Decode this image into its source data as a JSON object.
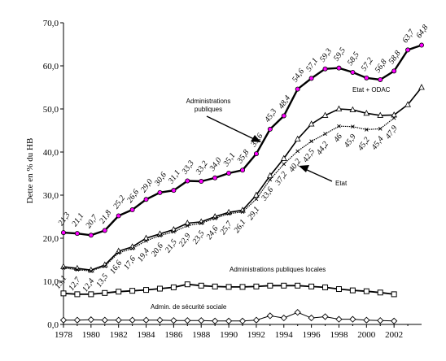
{
  "chart_data": {
    "type": "line",
    "title": "",
    "xlabel": "",
    "ylabel": "Dette en % du HB",
    "xlim": [
      1978,
      2004
    ],
    "ylim": [
      0,
      70
    ],
    "grid": false,
    "legend": "none",
    "x_ticks": [
      "1978",
      "1980",
      "1982",
      "1984",
      "1986",
      "1988",
      "1990",
      "1992",
      "1994",
      "1996",
      "1998",
      "2000",
      "2002"
    ],
    "y_ticks": [
      "0,0",
      "10,0",
      "20,0",
      "30,0",
      "40,0",
      "50,0",
      "60,0",
      "70,0"
    ],
    "series": [
      {
        "name": "Administrations publiques",
        "color": "#000000",
        "marker": "circle-magenta",
        "x": [
          1978,
          1979,
          1980,
          1981,
          1982,
          1983,
          1984,
          1985,
          1986,
          1987,
          1988,
          1989,
          1990,
          1991,
          1992,
          1993,
          1994,
          1995,
          1996,
          1997,
          1998,
          1999,
          2000,
          2001,
          2002,
          2003,
          2004
        ],
        "y": [
          21.3,
          21.1,
          20.7,
          21.8,
          25.2,
          26.6,
          29.0,
          30.6,
          31.1,
          33.3,
          33.2,
          34.0,
          35.1,
          35.8,
          39.6,
          45.3,
          48.4,
          54.6,
          57.1,
          59.3,
          59.5,
          58.5,
          57.2,
          56.8,
          58.8,
          63.7,
          64.8
        ],
        "labels": [
          "21,3",
          "21,1",
          "20,7",
          "21,8",
          "25,2",
          "26,6",
          "29,0",
          "30,6",
          "31,1",
          "33,3",
          "33,2",
          "34,0",
          "35,1",
          "35,8",
          "39,6",
          "45,3",
          "48,4",
          "54,6",
          "57,1",
          "59,3",
          "59,5",
          "58,5",
          "57,2",
          "56,8",
          "58,8",
          "63,7",
          "64,8"
        ]
      },
      {
        "name": "Etat + ODAC",
        "color": "#000000",
        "marker": "triangle",
        "x": [
          1978,
          1979,
          1980,
          1981,
          1982,
          1983,
          1984,
          1985,
          1986,
          1987,
          1988,
          1989,
          1990,
          1991,
          1992,
          1993,
          1994,
          1995,
          1996,
          1997,
          1998,
          1999,
          2000,
          2001,
          2002,
          2003,
          2004
        ],
        "y": [
          13.4,
          13.0,
          12.6,
          13.8,
          17.0,
          18.0,
          20.0,
          21.0,
          22.0,
          23.5,
          23.8,
          25.0,
          26.0,
          26.5,
          30.0,
          34.5,
          38.5,
          43.0,
          46.5,
          48.5,
          50.0,
          49.8,
          49.0,
          48.5,
          48.6,
          51.0,
          55.0
        ],
        "labels": []
      },
      {
        "name": "Etat",
        "color": "#000000",
        "marker": "cross",
        "x": [
          1978,
          1979,
          1980,
          1981,
          1982,
          1983,
          1984,
          1985,
          1986,
          1987,
          1988,
          1989,
          1990,
          1991,
          1992,
          1993,
          1994,
          1995,
          1996,
          1997,
          1998,
          1999,
          2000,
          2001,
          2002
        ],
        "y": [
          13.1,
          12.7,
          12.4,
          13.5,
          16.6,
          17.6,
          19.4,
          20.6,
          21.5,
          22.9,
          23.5,
          24.6,
          25.7,
          26.1,
          29.1,
          33.6,
          37.2,
          40.2,
          42.5,
          44.2,
          46.0,
          45.9,
          45.2,
          45.4,
          47.9
        ],
        "labels": [
          "13,1",
          "12,7",
          "12,4",
          "13,5",
          "16,6",
          "17,6",
          "19,4",
          "20,6",
          "21,5",
          "22,9",
          "23,5",
          "24,6",
          "25,7",
          "26,1",
          "29,1",
          "33,6",
          "37,2",
          "40,2",
          "42,5",
          "44,2",
          "46",
          "45,9",
          "45,2",
          "45,4",
          "47,9"
        ]
      },
      {
        "name": "Administrations publiques locales",
        "color": "#000000",
        "marker": "square",
        "x": [
          1978,
          1979,
          1980,
          1981,
          1982,
          1983,
          1984,
          1985,
          1986,
          1987,
          1988,
          1989,
          1990,
          1991,
          1992,
          1993,
          1994,
          1995,
          1996,
          1997,
          1998,
          1999,
          2000,
          2001,
          2002
        ],
        "y": [
          7.2,
          7.0,
          7.0,
          7.3,
          7.6,
          7.8,
          8.0,
          8.3,
          8.6,
          9.3,
          9.0,
          8.8,
          8.7,
          8.7,
          8.8,
          9.0,
          9.0,
          9.0,
          8.8,
          8.6,
          8.2,
          7.9,
          7.7,
          7.4,
          7.0
        ],
        "labels": []
      },
      {
        "name": "Admin. de sécurité sociale",
        "color": "#000000",
        "marker": "diamond",
        "x": [
          1978,
          1979,
          1980,
          1981,
          1982,
          1983,
          1984,
          1985,
          1986,
          1987,
          1988,
          1989,
          1990,
          1991,
          1992,
          1993,
          1994,
          1995,
          1996,
          1997,
          1998,
          1999,
          2000,
          2001,
          2002
        ],
        "y": [
          1.0,
          1.0,
          1.1,
          1.0,
          1.0,
          1.0,
          1.0,
          1.0,
          0.9,
          0.9,
          0.9,
          0.8,
          0.8,
          0.8,
          1.0,
          2.0,
          1.5,
          2.8,
          1.5,
          1.8,
          1.2,
          1.2,
          1.0,
          0.9,
          0.8
        ],
        "labels": []
      }
    ],
    "annotations": [
      {
        "id": "ap",
        "lines": [
          "Administrations",
          "publiques"
        ]
      },
      {
        "id": "etatodac",
        "lines": [
          "Etat + ODAC"
        ]
      },
      {
        "id": "etat",
        "lines": [
          "Etat"
        ]
      },
      {
        "id": "apl",
        "lines": [
          "Administrations publiques locales"
        ]
      },
      {
        "id": "ass",
        "lines": [
          "Admin. de sécurité sociale"
        ]
      }
    ]
  }
}
